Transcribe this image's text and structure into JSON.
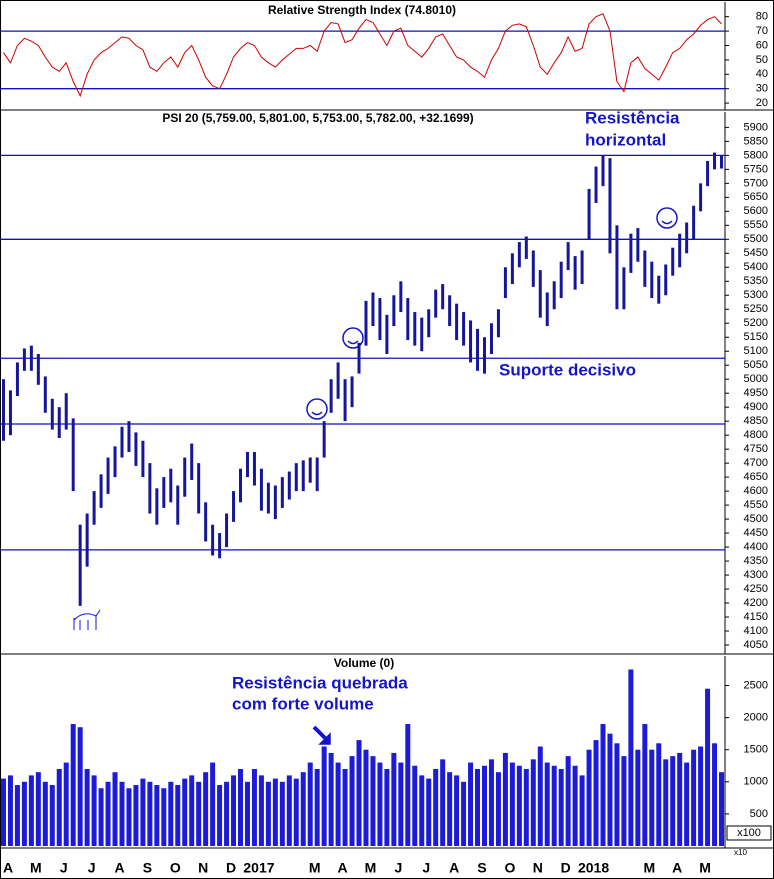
{
  "chart_data": [
    {
      "type": "line",
      "title": "Relative Strength Index (74.8010)",
      "color": "#cc0000",
      "ref_color": "#1010c0",
      "reference_lines": [
        70,
        30
      ],
      "ylim": [
        16.6,
        90.2
      ],
      "yticks": [
        20,
        30,
        40,
        50,
        60,
        70,
        80
      ],
      "values": [
        55,
        48,
        60,
        65,
        63,
        60,
        52,
        45,
        42,
        48,
        35,
        25,
        40,
        50,
        55,
        58,
        62,
        66,
        65,
        60,
        57,
        45,
        42,
        48,
        52,
        45,
        55,
        60,
        50,
        38,
        32,
        30,
        40,
        52,
        58,
        62,
        60,
        52,
        48,
        45,
        50,
        54,
        58,
        58,
        60,
        56,
        70,
        76,
        75,
        62,
        64,
        72,
        78,
        76,
        68,
        60,
        70,
        72,
        60,
        56,
        52,
        58,
        66,
        68,
        60,
        52,
        50,
        45,
        42,
        38,
        50,
        58,
        70,
        74,
        75,
        73,
        60,
        45,
        40,
        48,
        55,
        66,
        56,
        58,
        75,
        80,
        82,
        70,
        35,
        28,
        48,
        52,
        44,
        40,
        36,
        45,
        55,
        58,
        64,
        68,
        74,
        78,
        80,
        75
      ]
    },
    {
      "type": "range",
      "title": "PSI 20 (5,759.00, 5,801.00, 5,753.00, 5,782.00, +32.1699)",
      "color": "#16169a",
      "ref_color": "#1010c0",
      "annotations": [
        "Resistência",
        "horizontal",
        "Suporte decisivo"
      ],
      "reference_lines": [
        5800,
        5500,
        5075,
        4840,
        4390
      ],
      "ylim": [
        4025,
        5955
      ],
      "yticks": [
        4050,
        4100,
        4150,
        4200,
        4250,
        4300,
        4350,
        4400,
        4450,
        4500,
        4550,
        4600,
        4650,
        4700,
        4750,
        4800,
        4850,
        4900,
        4950,
        5000,
        5050,
        5100,
        5150,
        5200,
        5250,
        5300,
        5350,
        5400,
        5450,
        5500,
        5550,
        5600,
        5650,
        5700,
        5750,
        5800,
        5850,
        5900
      ],
      "high": [
        5000,
        4960,
        5060,
        5110,
        5120,
        5090,
        5010,
        4930,
        4900,
        4950,
        4860,
        4480,
        4520,
        4600,
        4660,
        4720,
        4760,
        4830,
        4850,
        4810,
        4780,
        4700,
        4610,
        4650,
        4680,
        4620,
        4720,
        4770,
        4700,
        4560,
        4480,
        4450,
        4520,
        4600,
        4680,
        4740,
        4740,
        4680,
        4630,
        4620,
        4650,
        4670,
        4700,
        4710,
        4720,
        4720,
        4850,
        5000,
        5060,
        5000,
        5010,
        5130,
        5280,
        5310,
        5290,
        5230,
        5300,
        5350,
        5290,
        5240,
        5220,
        5250,
        5320,
        5340,
        5300,
        5270,
        5240,
        5210,
        5180,
        5150,
        5200,
        5250,
        5400,
        5450,
        5490,
        5510,
        5460,
        5390,
        5310,
        5350,
        5420,
        5490,
        5440,
        5460,
        5680,
        5760,
        5800,
        5790,
        5550,
        5400,
        5520,
        5540,
        5460,
        5420,
        5370,
        5410,
        5470,
        5520,
        5560,
        5620,
        5700,
        5780,
        5810,
        5801
      ],
      "low": [
        4780,
        4800,
        4940,
        5030,
        5030,
        4980,
        4880,
        4820,
        4790,
        4820,
        4600,
        4190,
        4330,
        4480,
        4540,
        4590,
        4650,
        4720,
        4740,
        4690,
        4650,
        4520,
        4480,
        4540,
        4560,
        4480,
        4580,
        4640,
        4520,
        4420,
        4370,
        4360,
        4400,
        4490,
        4560,
        4650,
        4620,
        4530,
        4520,
        4500,
        4540,
        4570,
        4600,
        4600,
        4630,
        4600,
        4720,
        4880,
        4930,
        4850,
        4900,
        5020,
        5120,
        5190,
        5140,
        5090,
        5190,
        5240,
        5140,
        5120,
        5100,
        5150,
        5220,
        5250,
        5190,
        5140,
        5120,
        5060,
        5030,
        5020,
        5090,
        5150,
        5290,
        5340,
        5400,
        5430,
        5330,
        5220,
        5190,
        5250,
        5290,
        5390,
        5320,
        5340,
        5500,
        5630,
        5690,
        5450,
        5250,
        5250,
        5380,
        5420,
        5330,
        5290,
        5270,
        5300,
        5370,
        5400,
        5450,
        5500,
        5600,
        5690,
        5750,
        5753
      ]
    },
    {
      "type": "bar",
      "title": "Volume (0)",
      "color": "#1c1cd8",
      "annotations": [
        "Resistência quebrada",
        "com forte volume"
      ],
      "unit_label": "x100",
      "unit_label_small": "x10",
      "ylim": [
        0,
        2960
      ],
      "yticks": [
        500,
        1000,
        1500,
        2000,
        2500
      ],
      "values": [
        1050,
        1100,
        950,
        1000,
        1100,
        1150,
        1000,
        950,
        1200,
        1300,
        1900,
        1850,
        1200,
        1100,
        900,
        1000,
        1150,
        1000,
        900,
        950,
        1050,
        1000,
        950,
        900,
        1000,
        950,
        1050,
        1100,
        1000,
        1150,
        1300,
        950,
        1000,
        1100,
        1200,
        1000,
        1200,
        1100,
        1000,
        1050,
        1000,
        1100,
        1050,
        1150,
        1300,
        1200,
        1550,
        1450,
        1300,
        1200,
        1400,
        1650,
        1500,
        1400,
        1300,
        1200,
        1450,
        1300,
        1900,
        1250,
        1100,
        1050,
        1200,
        1350,
        1150,
        1100,
        1000,
        1300,
        1200,
        1250,
        1350,
        1150,
        1450,
        1300,
        1250,
        1200,
        1350,
        1550,
        1300,
        1250,
        1200,
        1400,
        1250,
        1100,
        1500,
        1650,
        1900,
        1750,
        1600,
        1400,
        2750,
        1500,
        1900,
        1500,
        1600,
        1350,
        1400,
        1450,
        1300,
        1500,
        1550,
        2450,
        1600,
        1150
      ],
      "months": [
        "A",
        "M",
        "J",
        "J",
        "A",
        "S",
        "O",
        "N",
        "D",
        "2017",
        null,
        "M",
        "A",
        "M",
        "J",
        "J",
        "A",
        "S",
        "O",
        "N",
        "D",
        "2018",
        null,
        "M",
        "A",
        "M"
      ]
    }
  ]
}
